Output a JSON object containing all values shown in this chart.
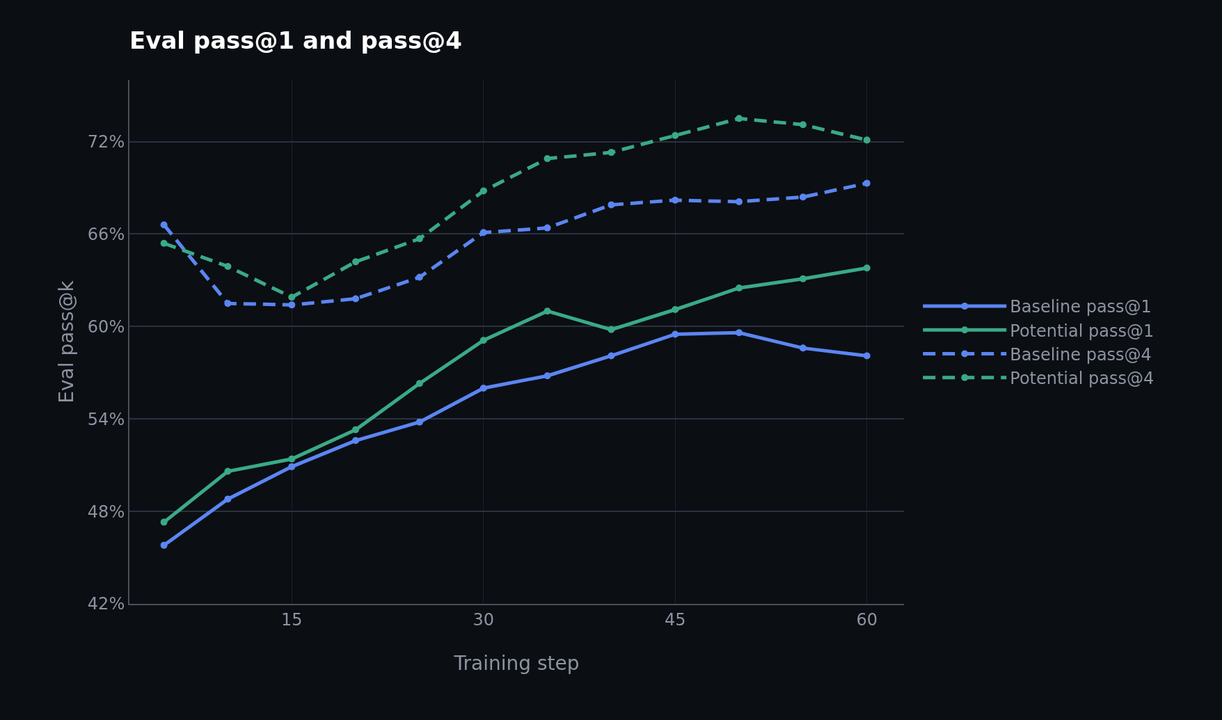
{
  "chart_data": {
    "type": "line",
    "title": "Eval pass@1 and pass@4",
    "xlabel": "Training step",
    "ylabel": "Eval pass@k",
    "x": [
      5,
      10,
      15,
      20,
      25,
      30,
      35,
      40,
      45,
      50,
      55,
      60
    ],
    "series": [
      {
        "name": "Baseline pass@1",
        "color": "#5b86f2",
        "line_style": "solid",
        "values": [
          45.8,
          48.8,
          50.9,
          52.6,
          53.8,
          56.0,
          56.8,
          58.1,
          59.5,
          59.6,
          58.6,
          58.1
        ]
      },
      {
        "name": "Potential pass@1",
        "color": "#3aaa86",
        "line_style": "solid",
        "values": [
          47.3,
          50.6,
          51.4,
          53.3,
          56.3,
          59.1,
          61.0,
          59.8,
          61.1,
          62.5,
          63.1,
          63.8
        ]
      },
      {
        "name": "Baseline pass@4",
        "color": "#5b86f2",
        "line_style": "dashed",
        "values": [
          66.6,
          61.5,
          61.4,
          61.8,
          63.2,
          66.1,
          66.4,
          67.9,
          68.2,
          68.1,
          68.4,
          69.3
        ]
      },
      {
        "name": "Potential pass@4",
        "color": "#3aaa86",
        "line_style": "dashed",
        "values": [
          65.4,
          63.9,
          61.9,
          64.2,
          65.7,
          68.8,
          70.9,
          71.3,
          72.4,
          73.5,
          73.1,
          72.1
        ]
      }
    ],
    "xlim": [
      2.3,
      62.9
    ],
    "xticks": [
      15,
      30,
      45,
      60
    ],
    "ylim": [
      42,
      76
    ],
    "yticks": [
      {
        "value": 42,
        "label": "42%"
      },
      {
        "value": 48,
        "label": "48%"
      },
      {
        "value": 54,
        "label": "54%"
      },
      {
        "value": 60,
        "label": "60%"
      },
      {
        "value": 66,
        "label": "66%"
      },
      {
        "value": 72,
        "label": "72%"
      }
    ],
    "grid": true,
    "legend": "right",
    "marker": "circle"
  }
}
